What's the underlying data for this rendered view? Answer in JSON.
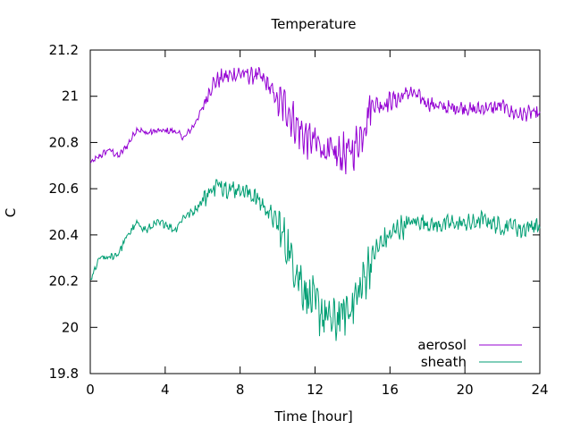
{
  "chart_data": {
    "type": "line",
    "title": "Temperature",
    "xlabel": "Time [hour]",
    "ylabel": "C",
    "xlim": [
      0,
      24
    ],
    "ylim": [
      19.8,
      21.2
    ],
    "xticks": [
      0,
      4,
      8,
      12,
      16,
      20,
      24
    ],
    "yticks": [
      19.8,
      20,
      20.2,
      20.4,
      20.6,
      20.8,
      21,
      21.2
    ],
    "ytick_labels": [
      "19.8",
      "20",
      "20.2",
      "20.4",
      "20.6",
      "20.8",
      "21",
      "21.2"
    ],
    "grid": false,
    "legend_position": "bottom-right",
    "series": [
      {
        "name": "aerosol",
        "color": "#9400d3",
        "x": [
          0,
          0.5,
          1,
          1.5,
          2,
          2.5,
          3,
          3.5,
          4,
          4.5,
          5,
          5.5,
          6,
          6.5,
          7,
          7.5,
          8,
          8.5,
          9,
          9.5,
          10,
          10.5,
          11,
          11.5,
          12,
          12.5,
          13,
          13.5,
          14,
          14.5,
          15,
          15.5,
          16,
          16.5,
          17,
          17.5,
          18,
          18.5,
          19,
          19.5,
          20,
          20.5,
          21,
          21.5,
          22,
          22.5,
          23,
          23.5,
          24
        ],
        "y": [
          20.71,
          20.74,
          20.77,
          20.74,
          20.79,
          20.86,
          20.84,
          20.85,
          20.85,
          20.85,
          20.82,
          20.87,
          20.95,
          21.05,
          21.08,
          21.09,
          21.1,
          21.09,
          21.09,
          21.05,
          20.98,
          20.95,
          20.87,
          20.82,
          20.8,
          20.77,
          20.74,
          20.75,
          20.76,
          20.84,
          20.97,
          20.96,
          20.98,
          20.99,
          21.02,
          21.0,
          20.97,
          20.96,
          20.95,
          20.95,
          20.95,
          20.94,
          20.95,
          20.95,
          20.96,
          20.93,
          20.92,
          20.93,
          20.92
        ]
      },
      {
        "name": "sheath",
        "color": "#009e73",
        "x": [
          0,
          0.5,
          1,
          1.5,
          2,
          2.5,
          3,
          3.5,
          4,
          4.5,
          5,
          5.5,
          6,
          6.5,
          7,
          7.5,
          8,
          8.5,
          9,
          9.5,
          10,
          10.5,
          11,
          11.5,
          12,
          12.5,
          13,
          13.5,
          14,
          14.5,
          15,
          15.5,
          16,
          16.5,
          17,
          17.5,
          18,
          18.5,
          19,
          19.5,
          20,
          20.5,
          21,
          21.5,
          22,
          22.5,
          23,
          23.5,
          24
        ],
        "y": [
          20.2,
          20.3,
          20.3,
          20.32,
          20.4,
          20.45,
          20.42,
          20.45,
          20.45,
          20.42,
          20.48,
          20.5,
          20.55,
          20.6,
          20.62,
          20.6,
          20.6,
          20.58,
          20.55,
          20.5,
          20.45,
          20.35,
          20.25,
          20.15,
          20.1,
          20.05,
          20.02,
          20.06,
          20.1,
          20.18,
          20.3,
          20.36,
          20.4,
          20.43,
          20.45,
          20.46,
          20.45,
          20.44,
          20.45,
          20.45,
          20.45,
          20.45,
          20.47,
          20.45,
          20.43,
          20.45,
          20.42,
          20.44,
          20.44
        ]
      }
    ]
  }
}
